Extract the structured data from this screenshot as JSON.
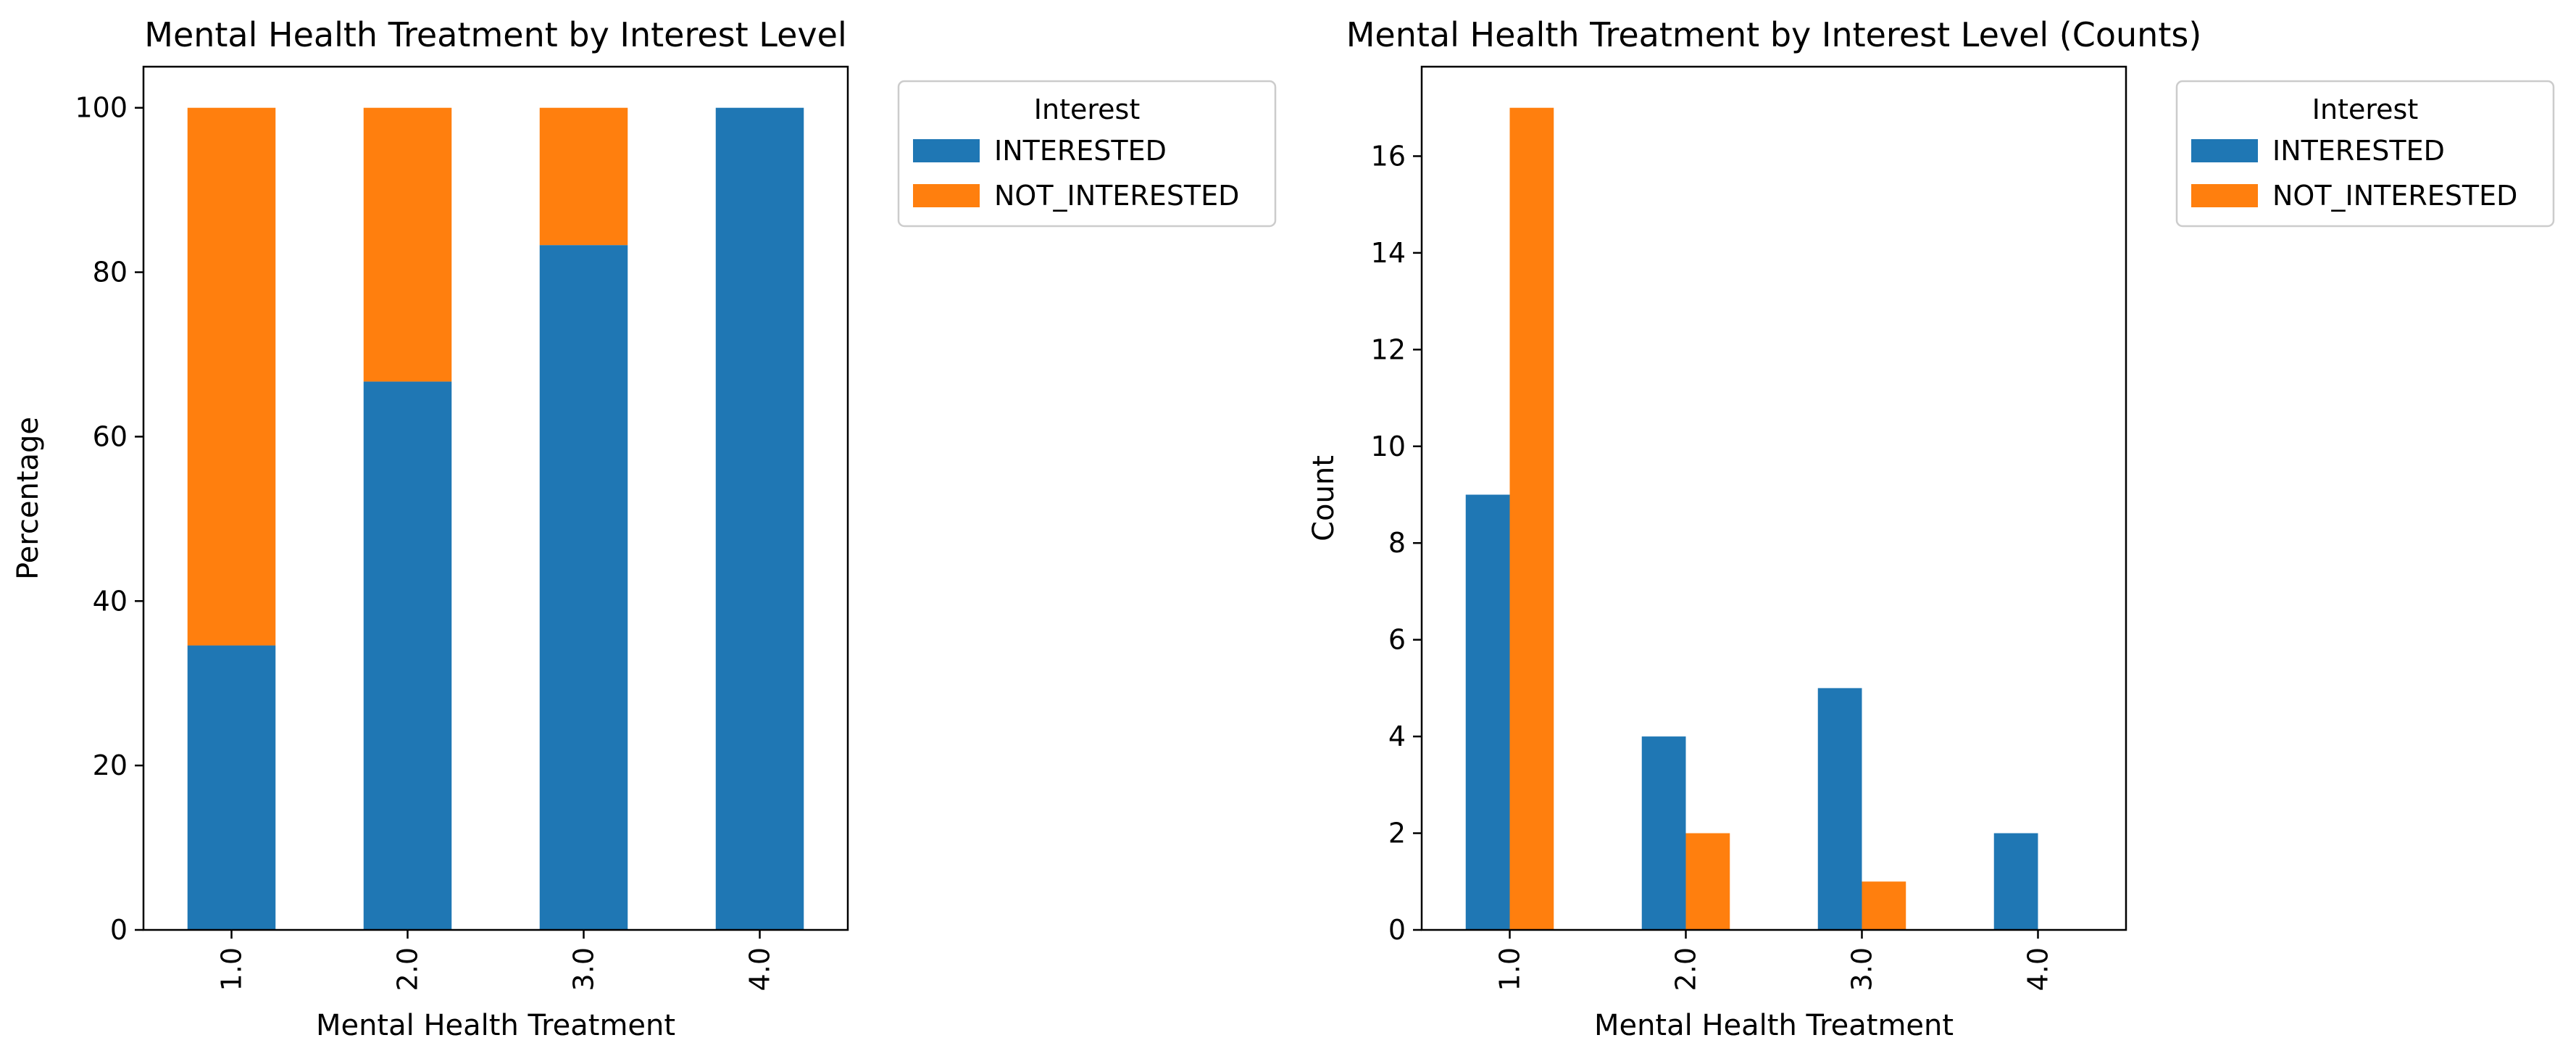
{
  "chart_data": [
    {
      "type": "bar",
      "stacked": true,
      "title": "Mental Health Treatment by Interest Level",
      "xlabel": "Mental Health Treatment",
      "ylabel": "Percentage",
      "categories": [
        "1.0",
        "2.0",
        "3.0",
        "4.0"
      ],
      "series": [
        {
          "name": "INTERESTED",
          "values": [
            34.6,
            66.7,
            83.3,
            100.0
          ]
        },
        {
          "name": "NOT_INTERESTED",
          "values": [
            65.4,
            33.3,
            16.7,
            0.0
          ]
        }
      ],
      "ylim": [
        0,
        105
      ],
      "yticks": [
        0,
        20,
        40,
        60,
        80,
        100
      ],
      "legend": {
        "title": "Interest",
        "placement": "outside upper right"
      },
      "grid": false
    },
    {
      "type": "bar",
      "stacked": false,
      "title": "Mental Health Treatment by Interest Level (Counts)",
      "xlabel": "Mental Health Treatment",
      "ylabel": "Count",
      "categories": [
        "1.0",
        "2.0",
        "3.0",
        "4.0"
      ],
      "series": [
        {
          "name": "INTERESTED",
          "values": [
            9,
            4,
            5,
            2
          ]
        },
        {
          "name": "NOT_INTERESTED",
          "values": [
            17,
            2,
            1,
            0
          ]
        }
      ],
      "ylim": [
        0,
        17.85
      ],
      "yticks": [
        0,
        2,
        4,
        6,
        8,
        10,
        12,
        14,
        16
      ],
      "legend": {
        "title": "Interest",
        "placement": "outside upper right"
      },
      "grid": false
    }
  ],
  "colors": {
    "INTERESTED": "#1f77b4",
    "NOT_INTERESTED": "#ff7f0e"
  }
}
